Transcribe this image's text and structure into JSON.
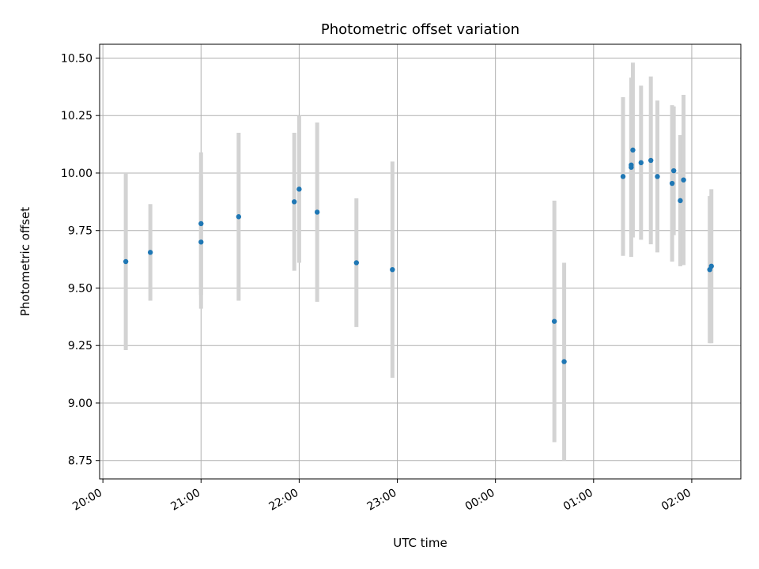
{
  "chart_data": {
    "type": "scatter",
    "title": "Photometric offset variation",
    "xlabel": "UTC time",
    "ylabel": "Photometric offset",
    "x_axis": {
      "kind": "time",
      "min": "2000-01-01T19:58",
      "max": "2000-01-02T02:30",
      "ticks": [
        {
          "label": "20:00",
          "value": "2000-01-01T20:00"
        },
        {
          "label": "21:00",
          "value": "2000-01-01T21:00"
        },
        {
          "label": "22:00",
          "value": "2000-01-01T22:00"
        },
        {
          "label": "23:00",
          "value": "2000-01-01T23:00"
        },
        {
          "label": "00:00",
          "value": "2000-01-02T00:00"
        },
        {
          "label": "01:00",
          "value": "2000-01-02T01:00"
        },
        {
          "label": "02:00",
          "value": "2000-01-02T02:00"
        }
      ]
    },
    "y_axis": {
      "min": 8.67,
      "max": 10.56,
      "ticks": [
        "8.75",
        "9.00",
        "9.25",
        "9.50",
        "9.75",
        "10.00",
        "10.25",
        "10.50"
      ]
    },
    "grid": true,
    "legend": "none",
    "colors": {
      "point": "#1f77b4",
      "errorbar": "#d3d3d3",
      "grid": "#b0b0b0"
    },
    "series": [
      {
        "points": [
          {
            "x": "2000-01-01T20:14",
            "y": 9.615,
            "yerr": 0.385
          },
          {
            "x": "2000-01-01T20:29",
            "y": 9.655,
            "yerr": 0.21
          },
          {
            "x": "2000-01-01T21:00",
            "y": 9.7,
            "yerr": 0.29
          },
          {
            "x": "2000-01-01T21:00",
            "y": 9.78,
            "yerr": 0.31
          },
          {
            "x": "2000-01-01T21:23",
            "y": 9.81,
            "yerr": 0.365
          },
          {
            "x": "2000-01-01T21:57",
            "y": 9.875,
            "yerr": 0.3
          },
          {
            "x": "2000-01-01T22:00",
            "y": 9.93,
            "yerr": 0.32
          },
          {
            "x": "2000-01-01T22:11",
            "y": 9.83,
            "yerr": 0.39
          },
          {
            "x": "2000-01-01T22:35",
            "y": 9.61,
            "yerr": 0.28
          },
          {
            "x": "2000-01-01T22:57",
            "y": 9.58,
            "yerr": 0.47
          },
          {
            "x": "2000-01-02T00:36",
            "y": 9.355,
            "yerr": 0.525
          },
          {
            "x": "2000-01-02T00:42",
            "y": 9.18,
            "yerr": 0.43
          },
          {
            "x": "2000-01-02T01:18",
            "y": 9.985,
            "yerr": 0.345
          },
          {
            "x": "2000-01-02T01:23",
            "y": 10.025,
            "yerr": 0.39
          },
          {
            "x": "2000-01-02T01:24",
            "y": 10.1,
            "yerr": 0.38
          },
          {
            "x": "2000-01-02T01:23",
            "y": 10.035,
            "yerr": 0.3
          },
          {
            "x": "2000-01-02T01:29",
            "y": 10.045,
            "yerr": 0.335
          },
          {
            "x": "2000-01-02T01:35",
            "y": 10.055,
            "yerr": 0.365
          },
          {
            "x": "2000-01-02T01:39",
            "y": 9.985,
            "yerr": 0.33
          },
          {
            "x": "2000-01-02T01:48",
            "y": 9.955,
            "yerr": 0.34
          },
          {
            "x": "2000-01-02T01:49",
            "y": 10.01,
            "yerr": 0.28
          },
          {
            "x": "2000-01-02T01:53",
            "y": 9.88,
            "yerr": 0.285
          },
          {
            "x": "2000-01-02T01:55",
            "y": 9.97,
            "yerr": 0.37
          },
          {
            "x": "2000-01-02T02:11",
            "y": 9.58,
            "yerr": 0.32
          },
          {
            "x": "2000-01-02T02:12",
            "y": 9.595,
            "yerr": 0.335
          }
        ]
      }
    ]
  }
}
